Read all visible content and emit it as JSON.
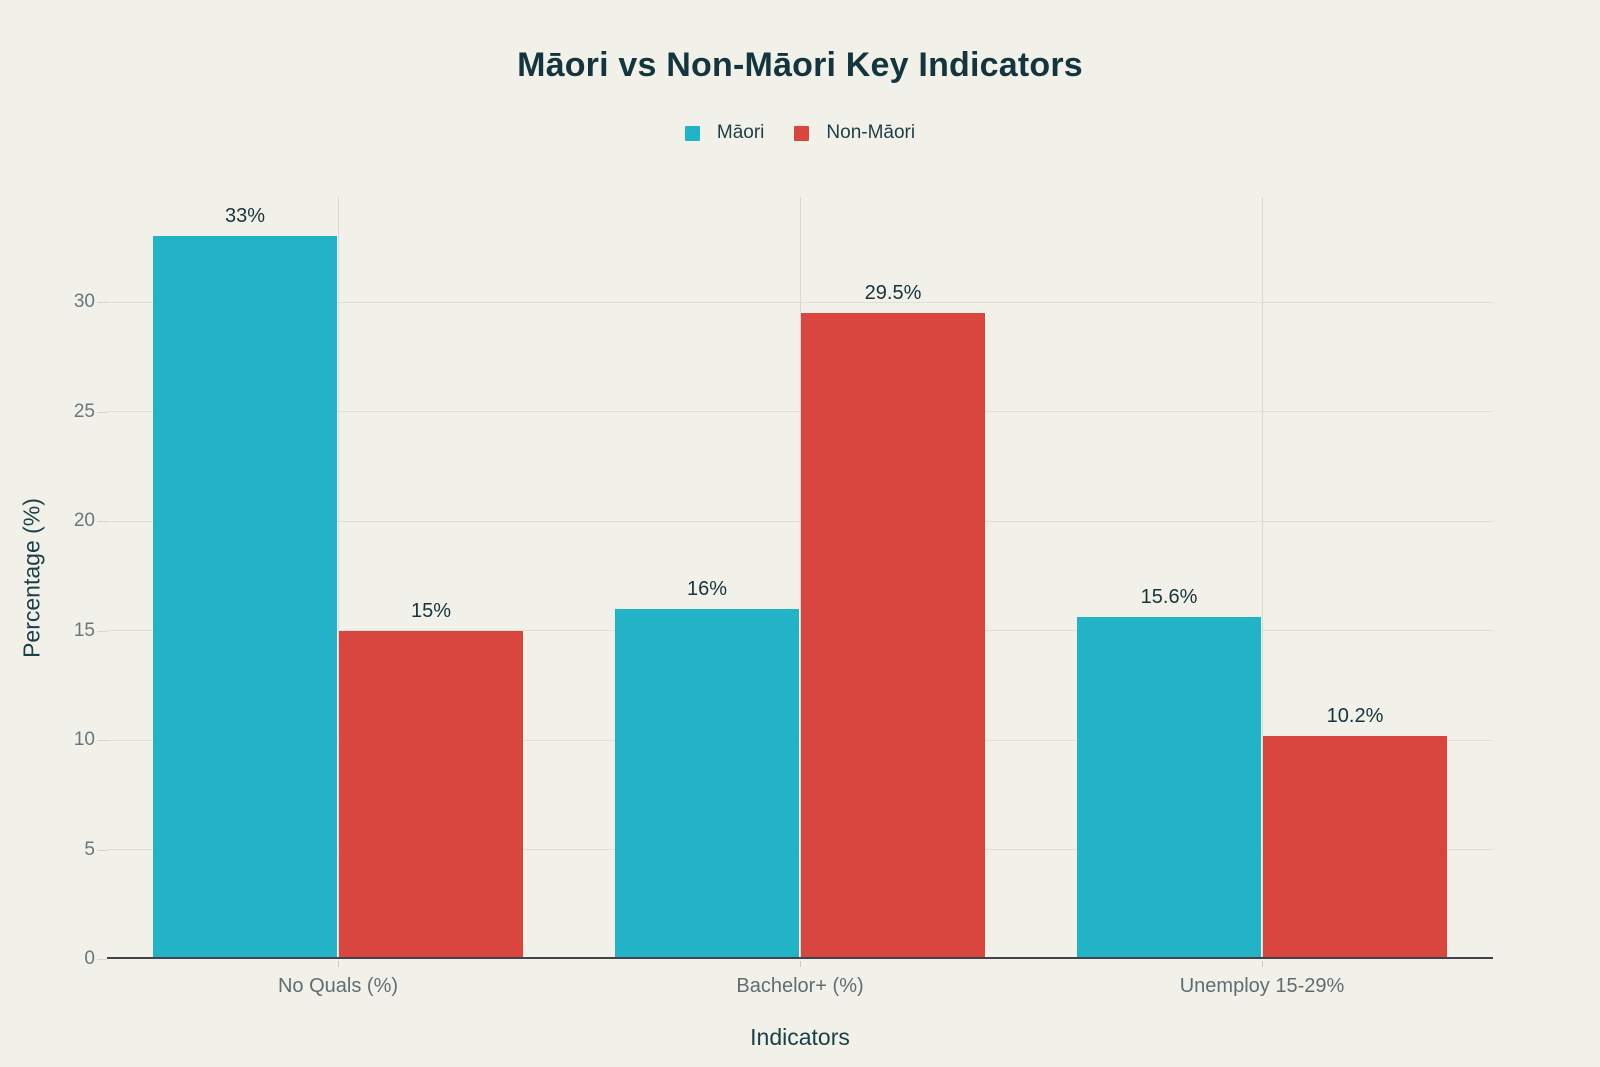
{
  "page": {
    "background": "#f1f1ea"
  },
  "chart_data": {
    "type": "bar",
    "title": "Māori vs Non-Māori Key Indicators",
    "categories": [
      "No Quals (%)",
      "Bachelor+ (%)",
      "Unemploy 15-29%"
    ],
    "series": [
      {
        "name": "Māori",
        "color": "#22b3c7",
        "values": [
          33,
          16,
          15.6
        ],
        "labels": [
          "33%",
          "16%",
          "15.6%"
        ]
      },
      {
        "name": "Non-Māori",
        "color": "#d9463f",
        "values": [
          15,
          29.5,
          10.2
        ],
        "labels": [
          "15%",
          "29.5%",
          "10.2%"
        ]
      }
    ],
    "xlabel": "Indicators",
    "ylabel": "Percentage (%)",
    "yticks": [
      0,
      5,
      10,
      15,
      20,
      25,
      30
    ],
    "ylim": [
      0,
      34.8
    ],
    "grid": true,
    "legend_position": "top-center",
    "value_labels_shown": true
  }
}
